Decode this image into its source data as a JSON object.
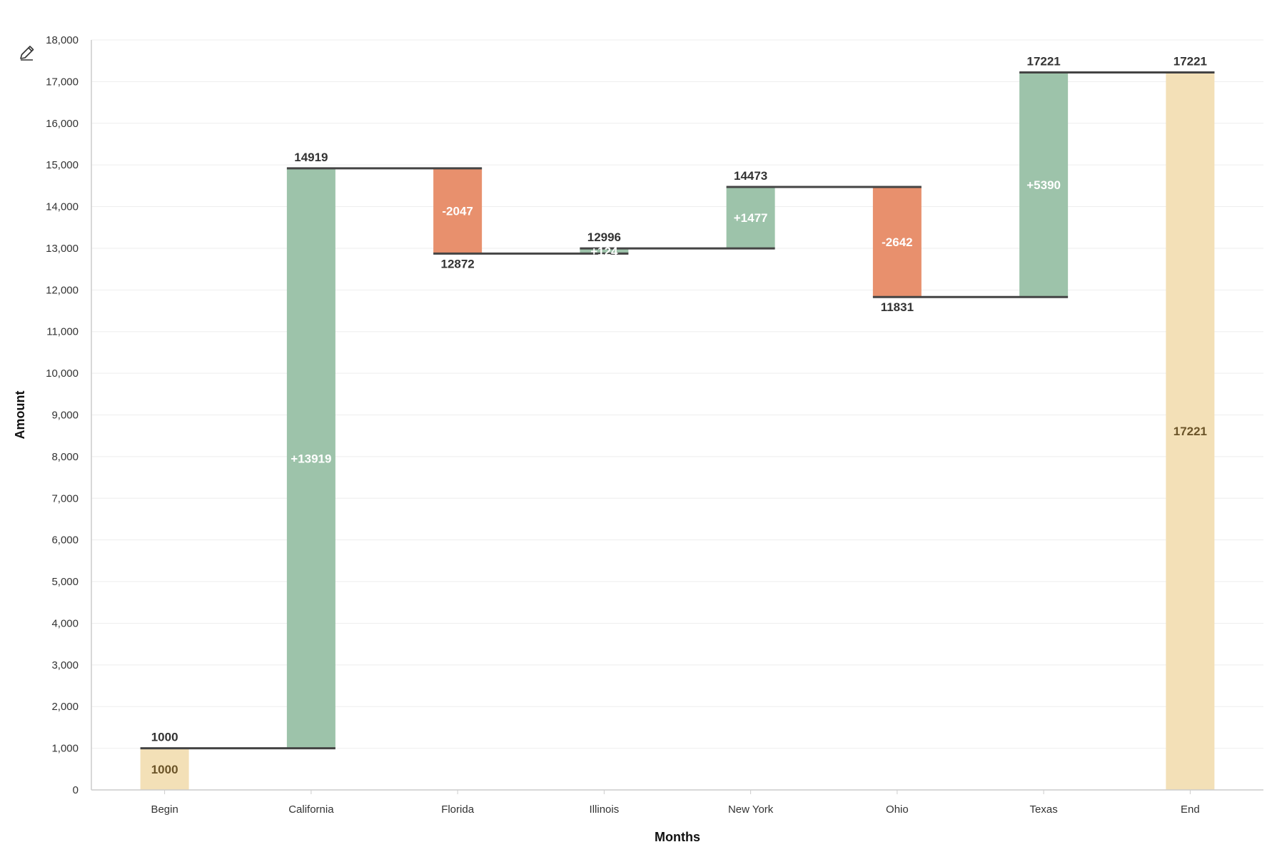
{
  "chart_data": {
    "type": "bar",
    "subtype": "waterfall",
    "xlabel": "Months",
    "ylabel": "Amount",
    "ylim": [
      0,
      18000
    ],
    "yticks": [
      0,
      1000,
      2000,
      3000,
      4000,
      5000,
      6000,
      7000,
      8000,
      9000,
      10000,
      11000,
      12000,
      13000,
      14000,
      15000,
      16000,
      17000,
      18000
    ],
    "ytick_labels": [
      "0",
      "1,000",
      "2,000",
      "3,000",
      "4,000",
      "5,000",
      "6,000",
      "7,000",
      "8,000",
      "9,000",
      "10,000",
      "11,000",
      "12,000",
      "13,000",
      "14,000",
      "15,000",
      "16,000",
      "17,000",
      "18,000"
    ],
    "grid": true,
    "categories": [
      "Begin",
      "California",
      "Florida",
      "Illinois",
      "New York",
      "Ohio",
      "Texas",
      "End"
    ],
    "bars": [
      {
        "category": "Begin",
        "kind": "total",
        "start": 0,
        "end": 1000,
        "change": 1000,
        "inner_label": "1000",
        "cumulative_label": "1000"
      },
      {
        "category": "California",
        "kind": "increase",
        "start": 1000,
        "end": 14919,
        "change": 13919,
        "inner_label": "+13919",
        "cumulative_label": "14919"
      },
      {
        "category": "Florida",
        "kind": "decrease",
        "start": 14919,
        "end": 12872,
        "change": -2047,
        "inner_label": "-2047",
        "cumulative_label": "12872"
      },
      {
        "category": "Illinois",
        "kind": "increase",
        "start": 12872,
        "end": 12996,
        "change": 124,
        "inner_label": "+124",
        "cumulative_label": "12996"
      },
      {
        "category": "New York",
        "kind": "increase",
        "start": 12996,
        "end": 14473,
        "change": 1477,
        "inner_label": "+1477",
        "cumulative_label": "14473"
      },
      {
        "category": "Ohio",
        "kind": "decrease",
        "start": 14473,
        "end": 11831,
        "change": -2642,
        "inner_label": "-2642",
        "cumulative_label": "11831"
      },
      {
        "category": "Texas",
        "kind": "increase",
        "start": 11831,
        "end": 17221,
        "change": 5390,
        "inner_label": "+5390",
        "cumulative_label": "17221"
      },
      {
        "category": "End",
        "kind": "total",
        "start": 0,
        "end": 17221,
        "change": 17221,
        "inner_label": "17221",
        "cumulative_label": "17221"
      }
    ],
    "colors": {
      "increase": "#9dc3aa",
      "decrease": "#e8906d",
      "total": "#f3e0b7",
      "connector": "#444444"
    }
  },
  "toolbar": {
    "edit_icon": "pencil-icon"
  }
}
